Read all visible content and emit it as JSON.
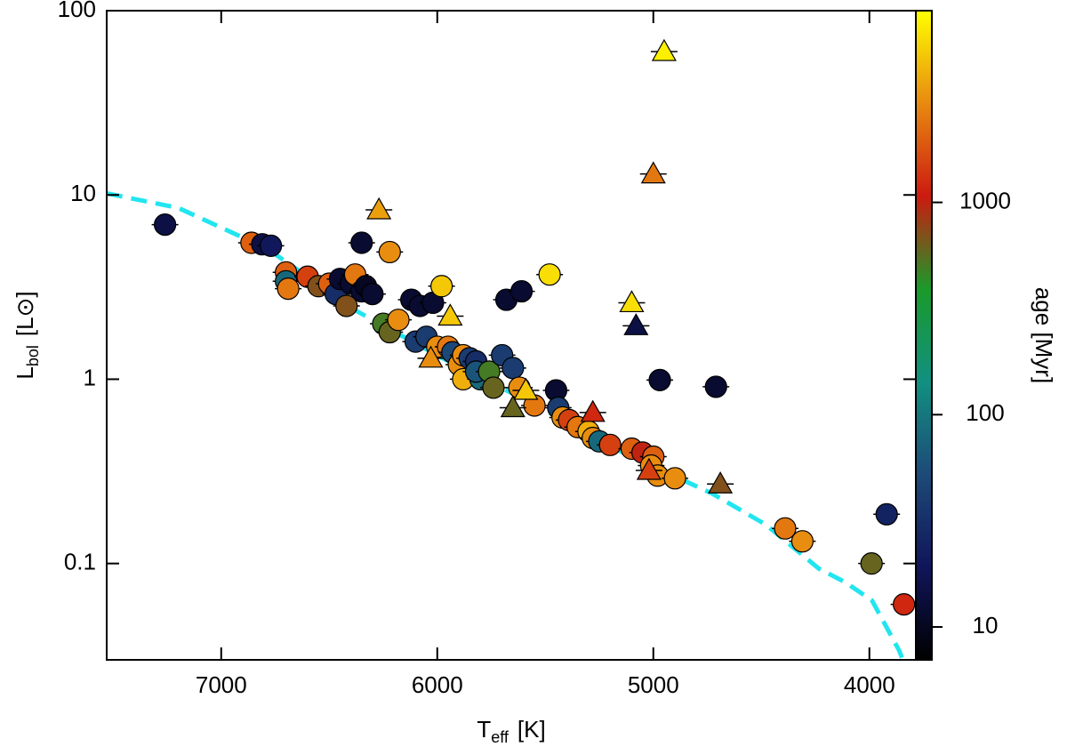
{
  "chart_data": {
    "type": "scatter",
    "xlabel": {
      "main": "T",
      "sub": "eff",
      "unit": "[K]"
    },
    "ylabel": {
      "main": "L",
      "sub": "bol",
      "unit": "[L⊙]"
    },
    "xlim": [
      7530,
      3785
    ],
    "xticks": [
      7000,
      6000,
      5000,
      4000
    ],
    "ylim": [
      0.03,
      100
    ],
    "yticks": [
      0.1,
      1,
      10,
      100
    ],
    "ylog": true,
    "colorbar": {
      "label": "age [Myr]",
      "lim": [
        7,
        8000
      ],
      "ticks": [
        10,
        100,
        1000
      ],
      "log": true,
      "colors": [
        "#000000",
        "#10155a",
        "#1d4a78",
        "#119080",
        "#1a9a2a",
        "#cc1a10",
        "#e88a10",
        "#ffff00"
      ]
    },
    "curve": {
      "color": "#22e5f0",
      "style": "dashed",
      "x": [
        7530,
        7198,
        6786,
        6375,
        5964,
        5552,
        5140,
        4729,
        4481,
        4235,
        4111,
        3988,
        3864,
        3845
      ],
      "y": [
        10.2,
        8.5,
        5.1,
        2.35,
        1.28,
        0.73,
        0.4,
        0.24,
        0.163,
        0.094,
        0.079,
        0.063,
        0.034,
        0.03
      ]
    },
    "series": [
      {
        "marker": "circle",
        "x": [
          7260,
          6860,
          6810,
          6770,
          6700,
          6700,
          6690,
          6600,
          6550,
          6500,
          6470,
          6450,
          6400,
          6380,
          6350,
          6330,
          6300,
          6420,
          6350,
          6220,
          6250,
          6220,
          6180,
          6120,
          6080,
          6020,
          5980,
          6100,
          6050,
          6000,
          5950,
          5930,
          5900,
          5880,
          5850,
          5820,
          5880,
          5800,
          5820,
          5760,
          5740,
          5700,
          5650,
          5620,
          5550,
          5480,
          5680,
          5610,
          5450,
          5440,
          5420,
          5390,
          5350,
          5300,
          5280,
          5250,
          5200,
          5100,
          5050,
          5000,
          5010,
          4980,
          4900,
          4970,
          4710,
          4390,
          4310,
          3990,
          3920,
          3840
        ],
        "y": [
          6.9,
          5.5,
          5.4,
          5.3,
          3.8,
          3.4,
          3.1,
          3.6,
          3.2,
          3.3,
          2.9,
          3.5,
          3.3,
          3.7,
          3.0,
          3.2,
          2.9,
          2.5,
          5.5,
          4.9,
          2.0,
          1.8,
          2.1,
          2.7,
          2.5,
          2.6,
          3.2,
          1.6,
          1.7,
          1.5,
          1.5,
          1.4,
          1.2,
          1.35,
          1.3,
          1.25,
          1.0,
          1.0,
          1.1,
          1.1,
          0.9,
          1.35,
          1.15,
          0.9,
          0.72,
          3.7,
          2.7,
          3.0,
          0.87,
          0.7,
          0.62,
          0.6,
          0.55,
          0.52,
          0.48,
          0.46,
          0.44,
          0.42,
          0.4,
          0.38,
          0.34,
          0.3,
          0.29,
          0.99,
          0.91,
          0.155,
          0.132,
          0.1,
          0.185,
          0.06
        ],
        "age": [
          15,
          2000,
          15,
          20,
          2000,
          80,
          2500,
          1500,
          700,
          2000,
          30,
          12,
          12,
          2500,
          12,
          10,
          12,
          700,
          12,
          3000,
          500,
          600,
          3000,
          12,
          12,
          12,
          5000,
          40,
          40,
          3000,
          2500,
          50,
          3000,
          3000,
          40,
          30,
          4000,
          80,
          60,
          500,
          600,
          40,
          40,
          3000,
          2500,
          6000,
          12,
          12,
          12,
          40,
          3000,
          1500,
          2500,
          4000,
          3000,
          80,
          1500,
          2000,
          1000,
          2000,
          3000,
          3000,
          3000,
          12,
          12,
          2500,
          3000,
          600,
          25,
          1200
        ]
      },
      {
        "marker": "triangle",
        "x": [
          6270,
          5940,
          6030,
          5590,
          5650,
          5280,
          5100,
          5080,
          4950,
          5000,
          5020,
          4690
        ],
        "y": [
          8.3,
          2.2,
          1.3,
          0.87,
          0.7,
          0.66,
          2.6,
          1.95,
          60,
          13,
          0.32,
          0.27
        ],
        "age": [
          3500,
          5000,
          3000,
          5000,
          600,
          1200,
          6000,
          15,
          7000,
          2500,
          1500,
          700
        ]
      }
    ]
  }
}
